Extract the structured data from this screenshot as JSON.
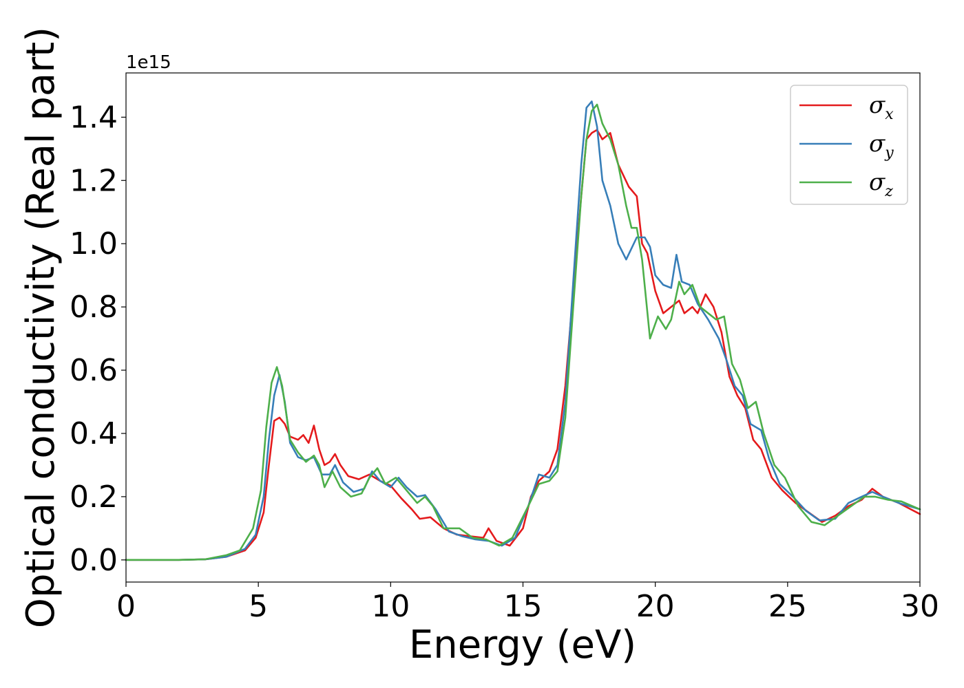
{
  "chart_data": {
    "type": "line",
    "title": "",
    "xlabel": "Energy (eV)",
    "ylabel": "Optical conductivity (Real part)",
    "y_offset_text": "1e15",
    "xlim": [
      0,
      30
    ],
    "ylim": [
      -0.07,
      1.54
    ],
    "x_ticks": [
      0,
      5,
      10,
      15,
      20,
      25,
      30
    ],
    "x_tick_labels": [
      "0",
      "5",
      "10",
      "15",
      "20",
      "25",
      "30"
    ],
    "y_ticks": [
      0.0,
      0.2,
      0.4,
      0.6,
      0.8,
      1.0,
      1.2,
      1.4
    ],
    "y_tick_labels": [
      "0.0",
      "0.2",
      "0.4",
      "0.6",
      "0.8",
      "1.0",
      "1.2",
      "1.4"
    ],
    "grid": false,
    "legend_position": "top-right",
    "series": [
      {
        "name": "σx",
        "symbol": "σ",
        "subscript": "x",
        "color": "#e41a1c",
        "points": [
          [
            0,
            0
          ],
          [
            2,
            0
          ],
          [
            3,
            0.002
          ],
          [
            3.8,
            0.01
          ],
          [
            4.5,
            0.03
          ],
          [
            4.9,
            0.07
          ],
          [
            5.2,
            0.15
          ],
          [
            5.4,
            0.3
          ],
          [
            5.6,
            0.44
          ],
          [
            5.8,
            0.45
          ],
          [
            6,
            0.43
          ],
          [
            6.2,
            0.39
          ],
          [
            6.5,
            0.38
          ],
          [
            6.7,
            0.395
          ],
          [
            6.9,
            0.37
          ],
          [
            7.1,
            0.425
          ],
          [
            7.3,
            0.35
          ],
          [
            7.5,
            0.3
          ],
          [
            7.7,
            0.31
          ],
          [
            7.9,
            0.335
          ],
          [
            8.1,
            0.3
          ],
          [
            8.4,
            0.265
          ],
          [
            8.8,
            0.255
          ],
          [
            9.2,
            0.27
          ],
          [
            9.6,
            0.25
          ],
          [
            10,
            0.235
          ],
          [
            10.4,
            0.195
          ],
          [
            10.8,
            0.16
          ],
          [
            11.1,
            0.13
          ],
          [
            11.5,
            0.135
          ],
          [
            12,
            0.1
          ],
          [
            12.5,
            0.08
          ],
          [
            13,
            0.075
          ],
          [
            13.5,
            0.07
          ],
          [
            13.7,
            0.1
          ],
          [
            14,
            0.06
          ],
          [
            14.5,
            0.045
          ],
          [
            15,
            0.1
          ],
          [
            15.3,
            0.2
          ],
          [
            15.6,
            0.25
          ],
          [
            16,
            0.28
          ],
          [
            16.3,
            0.35
          ],
          [
            16.6,
            0.55
          ],
          [
            16.9,
            0.85
          ],
          [
            17.2,
            1.15
          ],
          [
            17.4,
            1.33
          ],
          [
            17.6,
            1.35
          ],
          [
            17.8,
            1.36
          ],
          [
            18,
            1.33
          ],
          [
            18.3,
            1.35
          ],
          [
            18.6,
            1.25
          ],
          [
            19,
            1.18
          ],
          [
            19.3,
            1.15
          ],
          [
            19.5,
            1.0
          ],
          [
            19.7,
            0.97
          ],
          [
            20,
            0.85
          ],
          [
            20.3,
            0.78
          ],
          [
            20.6,
            0.8
          ],
          [
            20.9,
            0.82
          ],
          [
            21.1,
            0.78
          ],
          [
            21.4,
            0.8
          ],
          [
            21.6,
            0.78
          ],
          [
            21.9,
            0.84
          ],
          [
            22.2,
            0.8
          ],
          [
            22.5,
            0.72
          ],
          [
            22.8,
            0.58
          ],
          [
            23.1,
            0.52
          ],
          [
            23.4,
            0.48
          ],
          [
            23.7,
            0.38
          ],
          [
            24,
            0.35
          ],
          [
            24.4,
            0.26
          ],
          [
            24.8,
            0.22
          ],
          [
            25.3,
            0.18
          ],
          [
            25.8,
            0.15
          ],
          [
            26.3,
            0.12
          ],
          [
            26.8,
            0.14
          ],
          [
            27.3,
            0.17
          ],
          [
            27.8,
            0.19
          ],
          [
            28.2,
            0.225
          ],
          [
            28.6,
            0.2
          ],
          [
            29.2,
            0.18
          ],
          [
            30,
            0.145
          ]
        ]
      },
      {
        "name": "σy",
        "symbol": "σ",
        "subscript": "y",
        "color": "#377eb8",
        "points": [
          [
            0,
            0
          ],
          [
            2,
            0
          ],
          [
            3,
            0.002
          ],
          [
            3.8,
            0.01
          ],
          [
            4.5,
            0.035
          ],
          [
            4.9,
            0.08
          ],
          [
            5.2,
            0.2
          ],
          [
            5.4,
            0.38
          ],
          [
            5.6,
            0.52
          ],
          [
            5.8,
            0.585
          ],
          [
            6,
            0.5
          ],
          [
            6.2,
            0.37
          ],
          [
            6.5,
            0.325
          ],
          [
            6.8,
            0.315
          ],
          [
            7.1,
            0.325
          ],
          [
            7.4,
            0.27
          ],
          [
            7.7,
            0.27
          ],
          [
            7.9,
            0.3
          ],
          [
            8.2,
            0.245
          ],
          [
            8.6,
            0.215
          ],
          [
            9,
            0.225
          ],
          [
            9.3,
            0.28
          ],
          [
            9.6,
            0.25
          ],
          [
            10,
            0.23
          ],
          [
            10.3,
            0.26
          ],
          [
            10.6,
            0.23
          ],
          [
            11,
            0.2
          ],
          [
            11.3,
            0.205
          ],
          [
            11.7,
            0.16
          ],
          [
            12.2,
            0.09
          ],
          [
            12.7,
            0.075
          ],
          [
            13.2,
            0.065
          ],
          [
            13.7,
            0.06
          ],
          [
            14.2,
            0.045
          ],
          [
            14.7,
            0.07
          ],
          [
            15.2,
            0.17
          ],
          [
            15.6,
            0.27
          ],
          [
            16,
            0.26
          ],
          [
            16.3,
            0.3
          ],
          [
            16.6,
            0.5
          ],
          [
            16.9,
            0.88
          ],
          [
            17.2,
            1.25
          ],
          [
            17.4,
            1.43
          ],
          [
            17.6,
            1.45
          ],
          [
            17.8,
            1.37
          ],
          [
            18,
            1.2
          ],
          [
            18.3,
            1.12
          ],
          [
            18.6,
            1.0
          ],
          [
            18.9,
            0.95
          ],
          [
            19.3,
            1.02
          ],
          [
            19.6,
            1.02
          ],
          [
            19.8,
            0.99
          ],
          [
            20,
            0.9
          ],
          [
            20.3,
            0.87
          ],
          [
            20.6,
            0.86
          ],
          [
            20.8,
            0.965
          ],
          [
            21,
            0.88
          ],
          [
            21.3,
            0.87
          ],
          [
            21.6,
            0.81
          ],
          [
            22,
            0.76
          ],
          [
            22.4,
            0.7
          ],
          [
            22.7,
            0.63
          ],
          [
            23,
            0.55
          ],
          [
            23.3,
            0.52
          ],
          [
            23.6,
            0.43
          ],
          [
            24,
            0.41
          ],
          [
            24.3,
            0.32
          ],
          [
            24.7,
            0.24
          ],
          [
            25.2,
            0.2
          ],
          [
            25.7,
            0.155
          ],
          [
            26.2,
            0.125
          ],
          [
            26.8,
            0.13
          ],
          [
            27.3,
            0.18
          ],
          [
            27.8,
            0.2
          ],
          [
            28.2,
            0.215
          ],
          [
            28.6,
            0.2
          ],
          [
            29.2,
            0.18
          ],
          [
            30,
            0.16
          ]
        ]
      },
      {
        "name": "σz",
        "symbol": "σ",
        "subscript": "z",
        "color": "#4daf4a",
        "points": [
          [
            0,
            0
          ],
          [
            2,
            0
          ],
          [
            3,
            0.002
          ],
          [
            3.8,
            0.015
          ],
          [
            4.3,
            0.03
          ],
          [
            4.8,
            0.1
          ],
          [
            5.1,
            0.22
          ],
          [
            5.3,
            0.42
          ],
          [
            5.5,
            0.56
          ],
          [
            5.7,
            0.61
          ],
          [
            5.9,
            0.55
          ],
          [
            6.2,
            0.38
          ],
          [
            6.5,
            0.34
          ],
          [
            6.8,
            0.31
          ],
          [
            7.1,
            0.33
          ],
          [
            7.3,
            0.3
          ],
          [
            7.5,
            0.23
          ],
          [
            7.8,
            0.28
          ],
          [
            8.1,
            0.23
          ],
          [
            8.5,
            0.2
          ],
          [
            8.9,
            0.21
          ],
          [
            9.2,
            0.26
          ],
          [
            9.5,
            0.29
          ],
          [
            9.8,
            0.24
          ],
          [
            10.2,
            0.26
          ],
          [
            10.6,
            0.22
          ],
          [
            11,
            0.18
          ],
          [
            11.3,
            0.2
          ],
          [
            11.6,
            0.17
          ],
          [
            12,
            0.1
          ],
          [
            12.6,
            0.1
          ],
          [
            13.1,
            0.07
          ],
          [
            13.6,
            0.065
          ],
          [
            14.1,
            0.045
          ],
          [
            14.6,
            0.07
          ],
          [
            15.2,
            0.17
          ],
          [
            15.6,
            0.24
          ],
          [
            16,
            0.25
          ],
          [
            16.3,
            0.28
          ],
          [
            16.6,
            0.45
          ],
          [
            16.9,
            0.8
          ],
          [
            17.2,
            1.15
          ],
          [
            17.4,
            1.33
          ],
          [
            17.6,
            1.42
          ],
          [
            17.8,
            1.44
          ],
          [
            18,
            1.38
          ],
          [
            18.3,
            1.33
          ],
          [
            18.6,
            1.25
          ],
          [
            18.9,
            1.12
          ],
          [
            19.1,
            1.05
          ],
          [
            19.3,
            1.05
          ],
          [
            19.5,
            0.95
          ],
          [
            19.8,
            0.7
          ],
          [
            20.1,
            0.77
          ],
          [
            20.4,
            0.73
          ],
          [
            20.6,
            0.76
          ],
          [
            20.9,
            0.88
          ],
          [
            21.1,
            0.84
          ],
          [
            21.4,
            0.87
          ],
          [
            21.7,
            0.8
          ],
          [
            22,
            0.78
          ],
          [
            22.3,
            0.76
          ],
          [
            22.6,
            0.77
          ],
          [
            22.9,
            0.62
          ],
          [
            23.2,
            0.57
          ],
          [
            23.5,
            0.48
          ],
          [
            23.8,
            0.5
          ],
          [
            24.1,
            0.4
          ],
          [
            24.5,
            0.3
          ],
          [
            24.9,
            0.26
          ],
          [
            25.4,
            0.17
          ],
          [
            25.9,
            0.12
          ],
          [
            26.4,
            0.11
          ],
          [
            26.9,
            0.14
          ],
          [
            27.4,
            0.17
          ],
          [
            27.9,
            0.2
          ],
          [
            28.3,
            0.2
          ],
          [
            28.8,
            0.19
          ],
          [
            29.3,
            0.185
          ],
          [
            30,
            0.16
          ]
        ]
      }
    ]
  }
}
